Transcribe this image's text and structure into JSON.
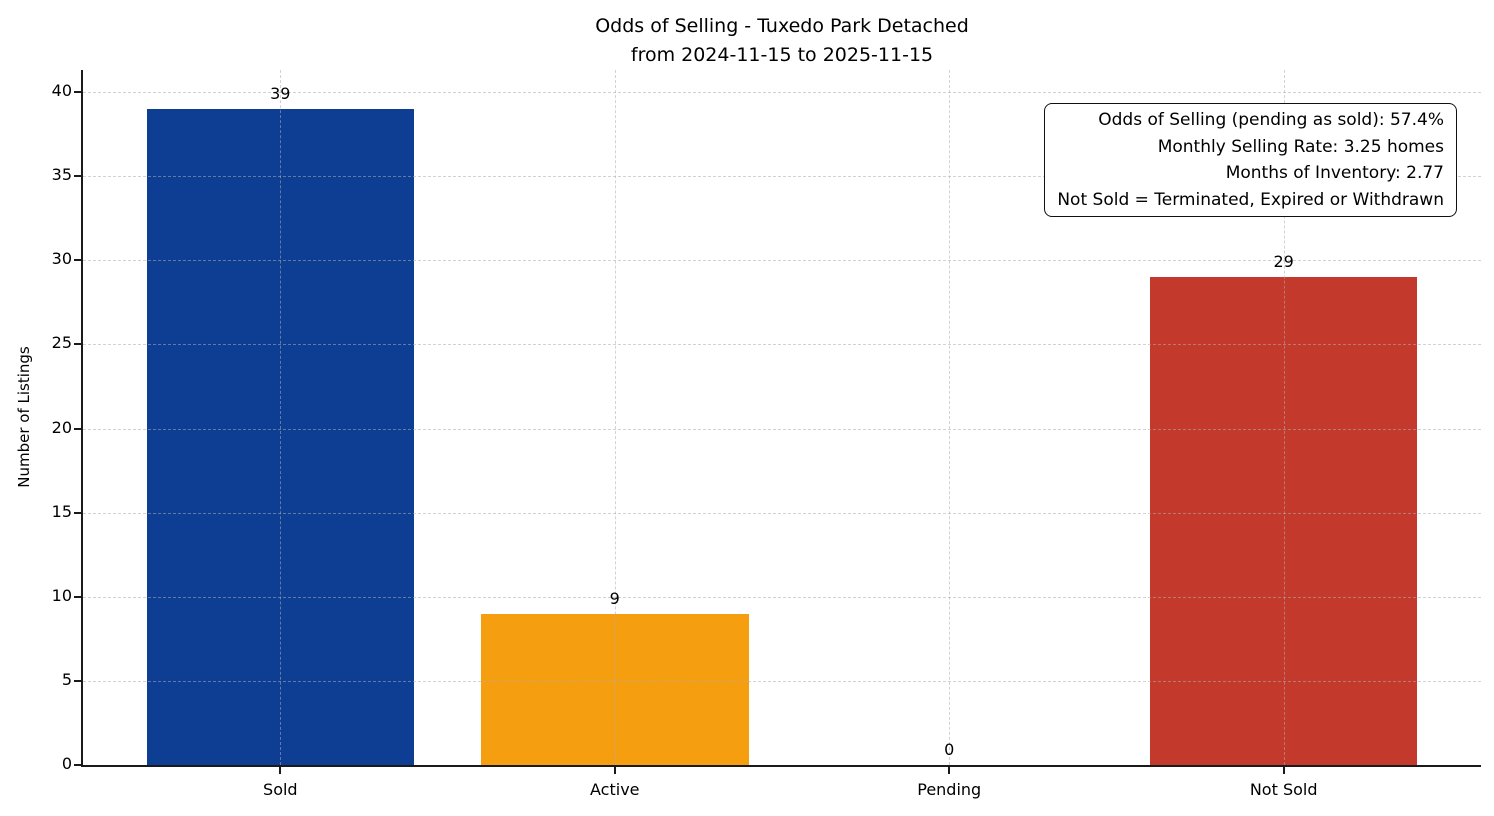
{
  "chart_data": {
    "type": "bar",
    "title": "Odds of Selling - Tuxedo Park Detached\nfrom 2024-11-15 to 2025-11-15",
    "title_lines": [
      "Odds of Selling - Tuxedo Park Detached",
      "from 2024-11-15 to 2025-11-15"
    ],
    "xlabel": "",
    "ylabel": "Number of Listings",
    "categories": [
      "Sold",
      "Active",
      "Pending",
      "Not Sold"
    ],
    "values": [
      39,
      9,
      0,
      29
    ],
    "value_labels": [
      "39",
      "9",
      "0",
      "29"
    ],
    "bar_colors": [
      "#0e3d94",
      "#f59e10",
      "",
      "#c33a2c"
    ],
    "yticks": [
      0,
      5,
      10,
      15,
      20,
      25,
      30,
      35,
      40
    ],
    "ylim": [
      0,
      41.3
    ],
    "grid": "dashed",
    "legend_position": "none",
    "annotation_box": {
      "position": "top-right",
      "lines": [
        "Odds of Selling (pending as sold): 57.4%",
        "Monthly Selling Rate: 3.25 homes",
        "Months of Inventory: 2.77",
        "Not Sold = Terminated, Expired or Withdrawn"
      ]
    }
  }
}
